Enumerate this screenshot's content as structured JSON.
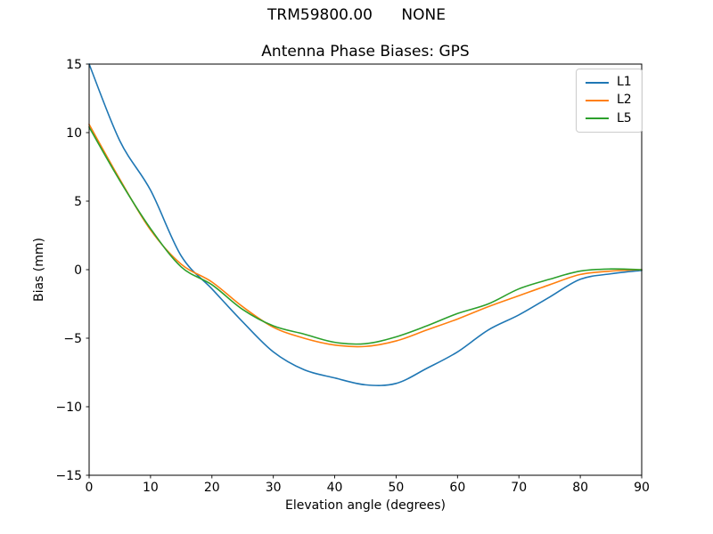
{
  "figure": {
    "suptitle": "TRM59800.00      NONE"
  },
  "chart_data": {
    "type": "line",
    "title": "Antenna Phase Biases: GPS",
    "xlabel": "Elevation angle (degrees)",
    "ylabel": "Bias (mm)",
    "xlim": [
      0,
      90
    ],
    "ylim": [
      -15,
      15
    ],
    "xticks": [
      0,
      10,
      20,
      30,
      40,
      50,
      60,
      70,
      80,
      90
    ],
    "yticks": [
      -15,
      -10,
      -5,
      0,
      5,
      10,
      15
    ],
    "grid": false,
    "legend_position": "upper right",
    "background": "#ffffff",
    "axes_edge_color": "#000000",
    "x": [
      0,
      5,
      10,
      15,
      20,
      25,
      30,
      35,
      40,
      45,
      50,
      55,
      60,
      65,
      70,
      75,
      80,
      85,
      90
    ],
    "series": [
      {
        "name": "L1",
        "color": "#1f77b4",
        "values": [
          15.0,
          9.4,
          5.8,
          1.0,
          -1.4,
          -3.8,
          -6.0,
          -7.3,
          -7.9,
          -8.4,
          -8.3,
          -7.2,
          -6.0,
          -4.4,
          -3.3,
          -2.0,
          -0.7,
          -0.3,
          -0.05
        ]
      },
      {
        "name": "L2",
        "color": "#ff7f0e",
        "values": [
          10.6,
          6.6,
          2.9,
          0.4,
          -0.9,
          -2.7,
          -4.2,
          -5.0,
          -5.5,
          -5.6,
          -5.2,
          -4.4,
          -3.6,
          -2.7,
          -1.9,
          -1.1,
          -0.35,
          -0.1,
          0.0
        ]
      },
      {
        "name": "L5",
        "color": "#2ca02c",
        "values": [
          10.4,
          6.5,
          3.0,
          0.2,
          -1.1,
          -2.9,
          -4.1,
          -4.7,
          -5.3,
          -5.4,
          -4.9,
          -4.1,
          -3.2,
          -2.5,
          -1.4,
          -0.7,
          -0.1,
          0.05,
          0.0
        ]
      }
    ]
  }
}
